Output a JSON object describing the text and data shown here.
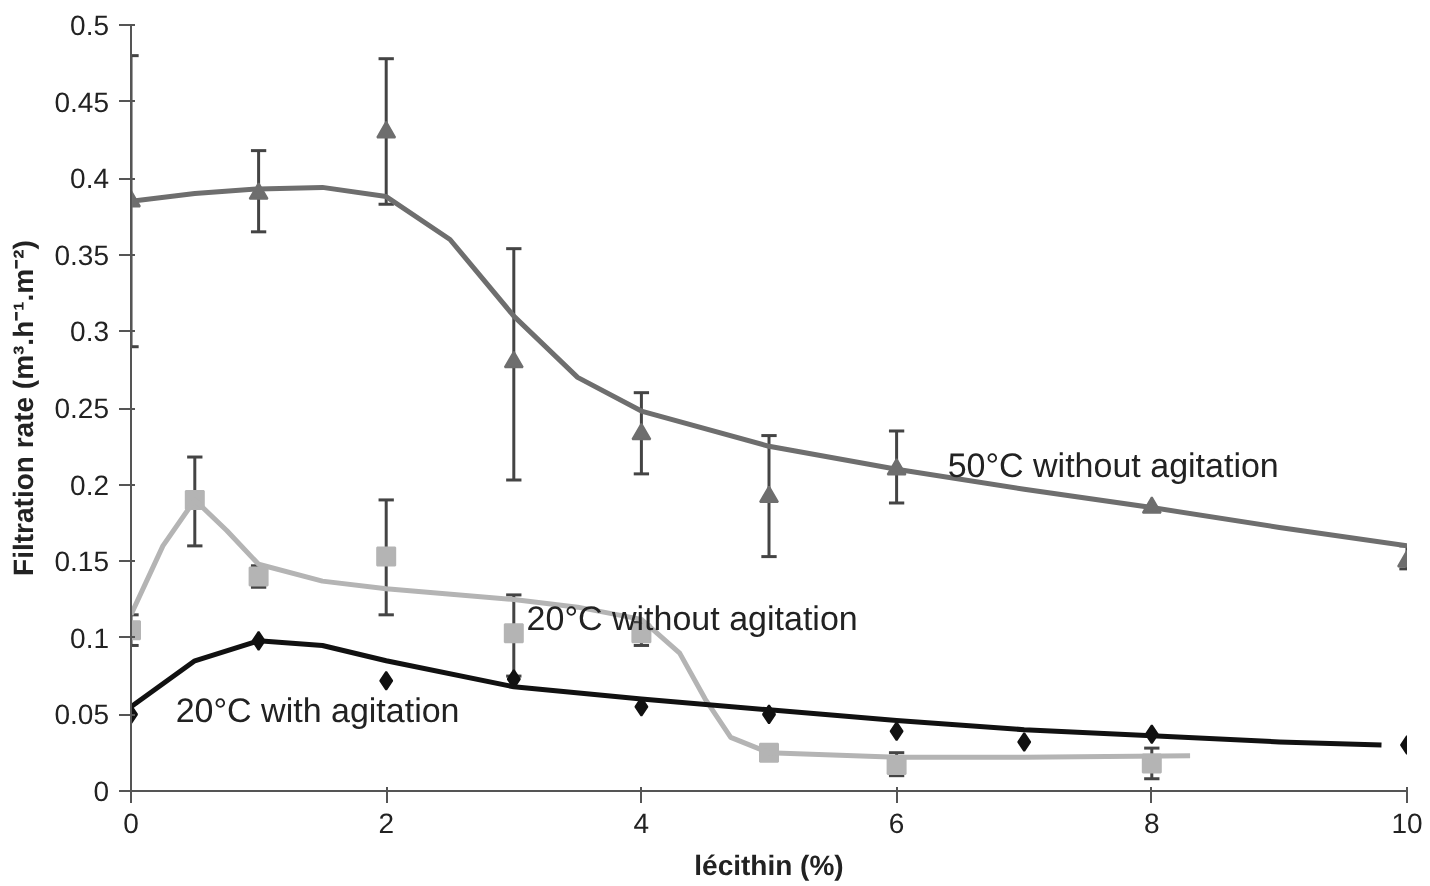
{
  "chart_data": {
    "type": "scatter",
    "xlabel": "lécithin (%)",
    "ylabel": "Filtration rate (m³.h⁻¹.m⁻²)",
    "xlim": [
      0,
      10
    ],
    "xticks": [
      0,
      2,
      4,
      6,
      8,
      10
    ],
    "ylim": [
      0,
      0.5
    ],
    "yticks": [
      0,
      0.05,
      0.1,
      0.15,
      0.2,
      0.25,
      0.3,
      0.35,
      0.4,
      0.45,
      0.5
    ],
    "grid": false,
    "line_style": "solid",
    "series": [
      {
        "marker": "triangle",
        "color": "#6e6e6e",
        "x": [
          0,
          1,
          2,
          3,
          4,
          5,
          6,
          8,
          10
        ],
        "values": [
          0.385,
          0.39,
          0.43,
          0.28,
          0.233,
          0.192,
          0.21,
          0.185,
          0.15
        ],
        "errors": [
          [
            0.29,
            0.48
          ],
          [
            0.365,
            0.418
          ],
          [
            0.383,
            0.478
          ],
          [
            0.203,
            0.354
          ],
          [
            0.207,
            0.26
          ],
          [
            0.153,
            0.232
          ],
          [
            0.188,
            0.235
          ],
          null,
          [
            0.145,
            0.16
          ]
        ]
      },
      {
        "type": "line",
        "marker": "none",
        "color": "#6e6e6e",
        "x": [
          0,
          0.5,
          1,
          1.5,
          2,
          2.5,
          3,
          3.5,
          4,
          5,
          6,
          7,
          8,
          9,
          10
        ],
        "values": [
          0.385,
          0.39,
          0.393,
          0.394,
          0.388,
          0.36,
          0.31,
          0.27,
          0.248,
          0.225,
          0.21,
          0.197,
          0.185,
          0.172,
          0.16
        ]
      },
      {
        "marker": "square",
        "color": "#b4b4b4",
        "x": [
          0,
          0.5,
          1,
          2,
          3,
          4,
          5,
          6,
          8
        ],
        "values": [
          0.105,
          0.19,
          0.14,
          0.153,
          0.103,
          0.103,
          0.025,
          0.017,
          0.018
        ],
        "errors": [
          [
            0.095,
            0.115
          ],
          [
            0.16,
            0.218
          ],
          [
            0.133,
            0.147
          ],
          [
            0.115,
            0.19
          ],
          [
            0.075,
            0.128
          ],
          [
            0.095,
            0.11
          ],
          [
            0.02,
            0.03
          ],
          [
            0.01,
            0.025
          ],
          [
            0.008,
            0.028
          ]
        ]
      },
      {
        "type": "line",
        "marker": "none",
        "color": "#b4b4b4",
        "x": [
          0,
          0.25,
          0.5,
          0.75,
          1,
          1.5,
          2,
          3,
          3.5,
          4,
          4.3,
          4.5,
          4.7,
          5,
          6,
          7,
          8.3
        ],
        "values": [
          0.115,
          0.16,
          0.19,
          0.17,
          0.148,
          0.137,
          0.132,
          0.125,
          0.12,
          0.112,
          0.09,
          0.06,
          0.035,
          0.025,
          0.022,
          0.022,
          0.023
        ]
      },
      {
        "marker": "diamond",
        "color": "#111111",
        "x": [
          0,
          1,
          2,
          3,
          4,
          5,
          6,
          7,
          8,
          10
        ],
        "values": [
          0.05,
          0.098,
          0.072,
          0.073,
          0.055,
          0.05,
          0.039,
          0.032,
          0.037,
          0.03
        ]
      },
      {
        "type": "line",
        "marker": "none",
        "color": "#111111",
        "x": [
          0,
          0.5,
          1,
          1.5,
          2,
          3,
          4,
          5,
          6,
          7,
          8,
          9,
          9.8
        ],
        "values": [
          0.055,
          0.085,
          0.098,
          0.095,
          0.085,
          0.068,
          0.06,
          0.053,
          0.046,
          0.04,
          0.036,
          0.032,
          0.03
        ]
      }
    ],
    "annotations": [
      {
        "text": "50°C without agitation",
        "x": 6.4,
        "y": 0.2
      },
      {
        "text": "20°C without agitation",
        "x": 3.1,
        "y": 0.1
      },
      "20°C with agitation"
    ]
  }
}
